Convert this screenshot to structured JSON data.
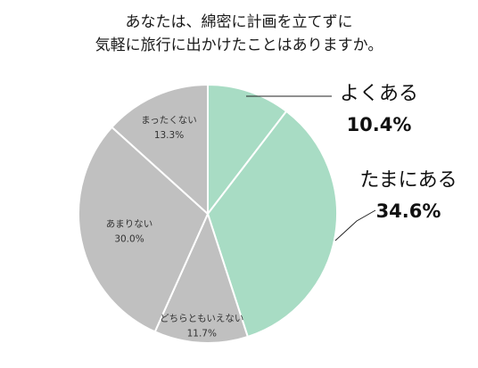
{
  "chart_data": {
    "type": "pie",
    "title_lines": [
      "あなたは、綿密に計画を立てずに",
      "気軽に旅行に出かけたことはありますか。"
    ],
    "slices": [
      {
        "label": "よくある",
        "value": 10.4,
        "value_label": "10.4%",
        "color": "#a8dcc4",
        "label_position": "outside"
      },
      {
        "label": "たまにある",
        "value": 34.6,
        "value_label": "34.6%",
        "color": "#a8dcc4",
        "label_position": "outside"
      },
      {
        "label": "どちらともいえない",
        "value": 11.7,
        "value_label": "11.7%",
        "color": "#c0c0c0",
        "label_position": "inside"
      },
      {
        "label": "あまりない",
        "value": 30.0,
        "value_label": "30.0%",
        "color": "#c0c0c0",
        "label_position": "inside"
      },
      {
        "label": "まったくない",
        "value": 13.3,
        "value_label": "13.3%",
        "color": "#c0c0c0",
        "label_position": "inside"
      }
    ],
    "start_angle": "12 o'clock",
    "direction": "clockwise",
    "slice_border_color": "#ffffff"
  }
}
